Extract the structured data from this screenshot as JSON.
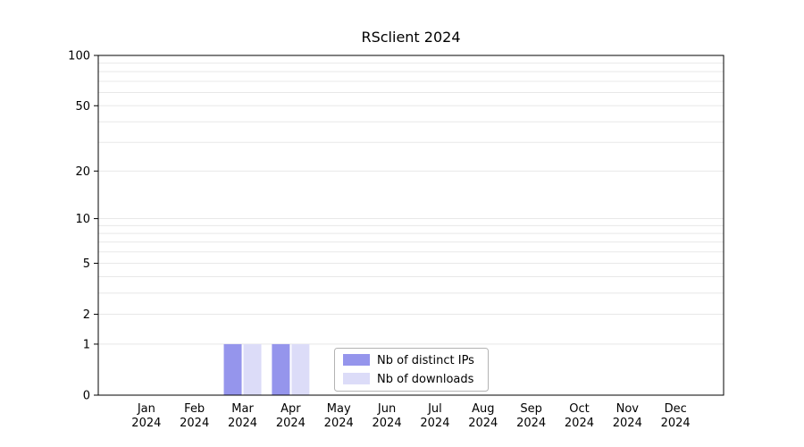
{
  "page": {
    "title": "RSclient 2024"
  },
  "chart_data": {
    "type": "bar",
    "title": "RSclient 2024",
    "categories": [
      "Jan",
      "Feb",
      "Mar",
      "Apr",
      "May",
      "Jun",
      "Jul",
      "Aug",
      "Sep",
      "Oct",
      "Nov",
      "Dec"
    ],
    "category_year": "2024",
    "series": [
      {
        "name": "Nb of distinct IPs",
        "color": "#9595ec",
        "values": [
          0,
          0,
          1,
          1,
          0,
          0,
          0,
          0,
          0,
          0,
          0,
          0
        ]
      },
      {
        "name": "Nb of downloads",
        "color": "#dcdcf8",
        "values": [
          0,
          0,
          1,
          1,
          0,
          0,
          0,
          0,
          0,
          0,
          0,
          0
        ]
      }
    ],
    "y_axis": {
      "scale": "log1p",
      "max": 100,
      "ticks": [
        0,
        1,
        2,
        5,
        10,
        20,
        50,
        100
      ],
      "gridlines": [
        1,
        2,
        3,
        4,
        5,
        6,
        7,
        8,
        9,
        10,
        20,
        30,
        40,
        50,
        60,
        70,
        80,
        90,
        100
      ]
    },
    "legend": {
      "position": "bottom-center"
    },
    "grid": true,
    "colors": {
      "gridline": "#e8e8e8",
      "axis": "#000000",
      "legend_border": "#b3b3b3"
    }
  }
}
